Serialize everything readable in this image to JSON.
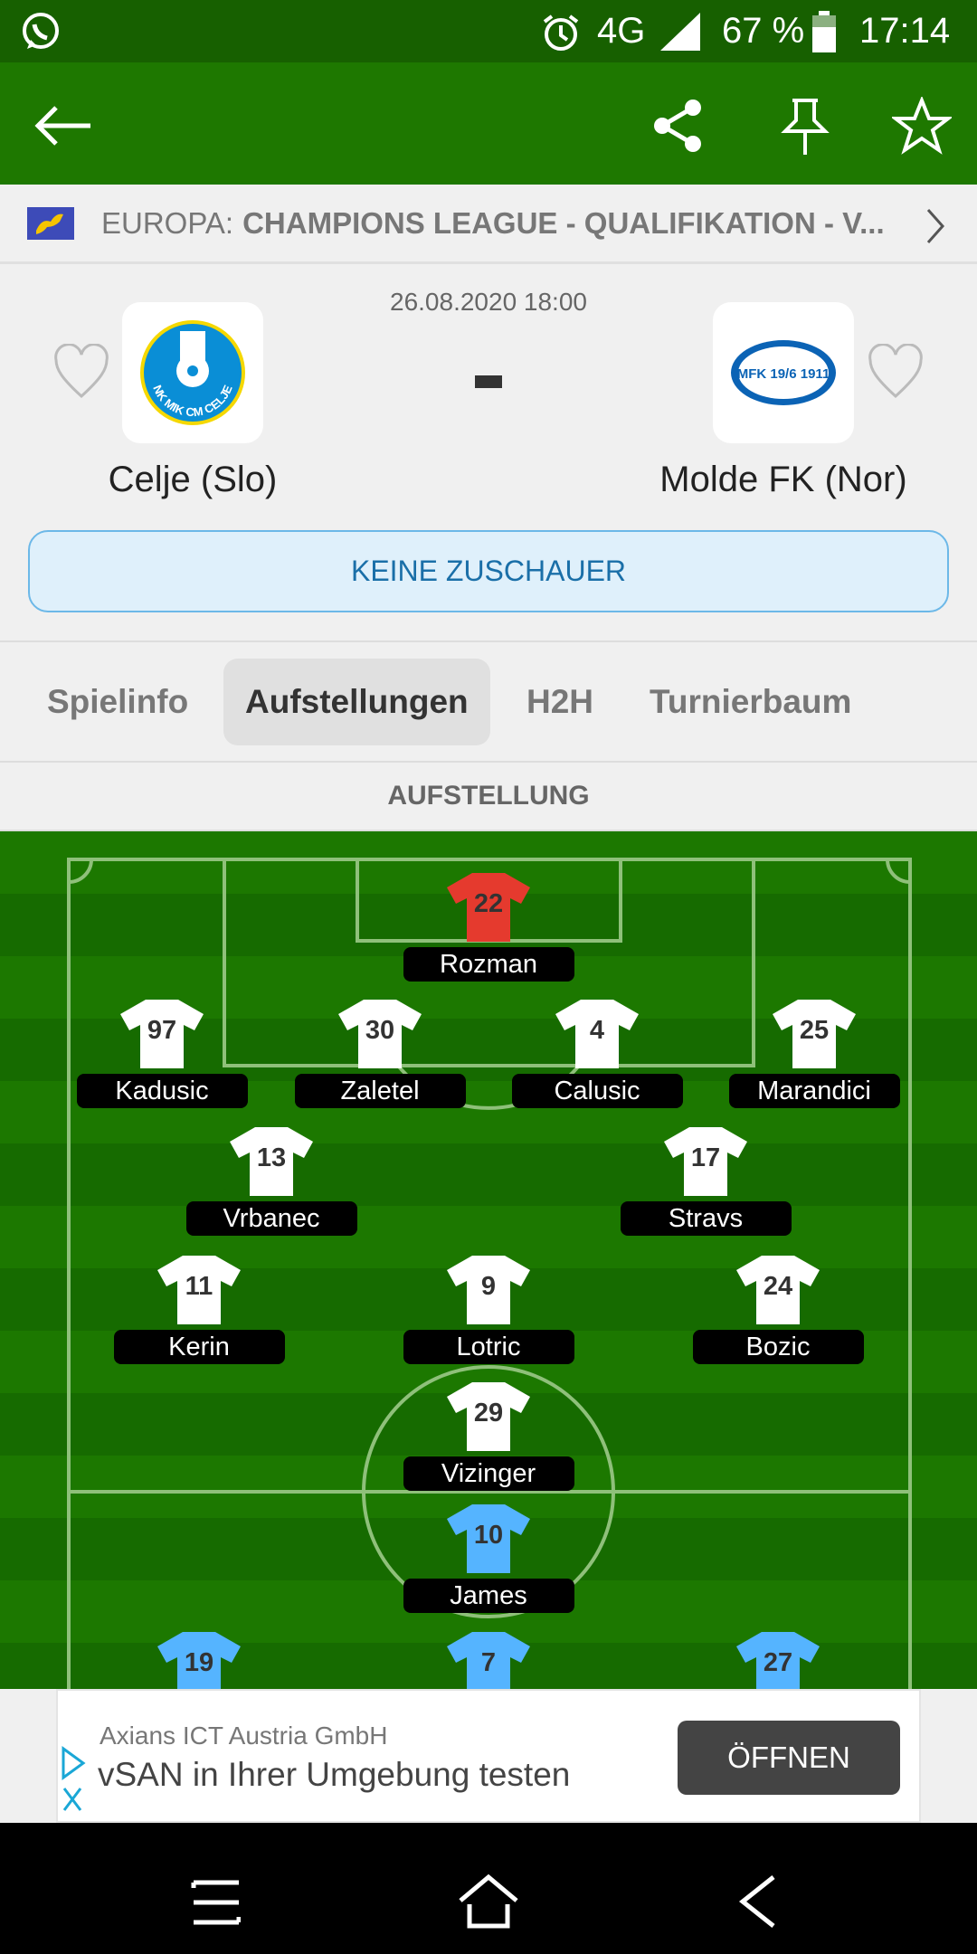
{
  "status_bar": {
    "time": "17:14",
    "battery": "67 %",
    "network": "4G",
    "icons": [
      "whatsapp-icon",
      "alarm-icon",
      "signal-icon",
      "battery-icon"
    ]
  },
  "app_bar": {
    "icons": [
      "back-arrow-icon",
      "share-icon",
      "pin-icon",
      "star-icon"
    ]
  },
  "breadcrumb": {
    "region": "EUROPA:",
    "competition": "CHAMPIONS LEAGUE - QUALIFIKATION - V..."
  },
  "match": {
    "datetime": "26.08.2020 18:00",
    "score": "-",
    "home": "Celje (Slo)",
    "away": "Molde FK (Nor)",
    "notice": "KEINE ZUSCHAUER",
    "home_logo_text": "NK MIK CM CELJE",
    "away_logo_text": "MFK 19/6 1911"
  },
  "tabs": [
    {
      "label": "Spielinfo"
    },
    {
      "label": "Aufstellungen",
      "active": true
    },
    {
      "label": "H2H"
    },
    {
      "label": "Turnierbaum"
    }
  ],
  "lineup": {
    "title": "AUFSTELLUNG",
    "colors": {
      "keeper": "#e53a2e",
      "home": "#ffffff",
      "away": "#55b4ff"
    },
    "players": [
      {
        "number": "22",
        "name": "Rozman",
        "kit": "keeper"
      },
      {
        "number": "97",
        "name": "Kadusic",
        "kit": "home"
      },
      {
        "number": "30",
        "name": "Zaletel",
        "kit": "home"
      },
      {
        "number": "4",
        "name": "Calusic",
        "kit": "home"
      },
      {
        "number": "25",
        "name": "Marandici",
        "kit": "home"
      },
      {
        "number": "13",
        "name": "Vrbanec",
        "kit": "home"
      },
      {
        "number": "17",
        "name": "Stravs",
        "kit": "home"
      },
      {
        "number": "11",
        "name": "Kerin",
        "kit": "home"
      },
      {
        "number": "9",
        "name": "Lotric",
        "kit": "home"
      },
      {
        "number": "24",
        "name": "Bozic",
        "kit": "home"
      },
      {
        "number": "29",
        "name": "Vizinger",
        "kit": "home"
      },
      {
        "number": "10",
        "name": "James",
        "kit": "away"
      },
      {
        "number": "19",
        "name": "",
        "kit": "away"
      },
      {
        "number": "7",
        "name": "",
        "kit": "away"
      },
      {
        "number": "27",
        "name": "",
        "kit": "away"
      }
    ]
  },
  "ad": {
    "advertiser": "Axians ICT Austria GmbH",
    "headline": "vSAN in Ihrer Umgebung testen",
    "cta": "ÖFFNEN"
  },
  "nav_bar": {
    "icons": [
      "recents-icon",
      "home-icon",
      "back-icon"
    ]
  }
}
